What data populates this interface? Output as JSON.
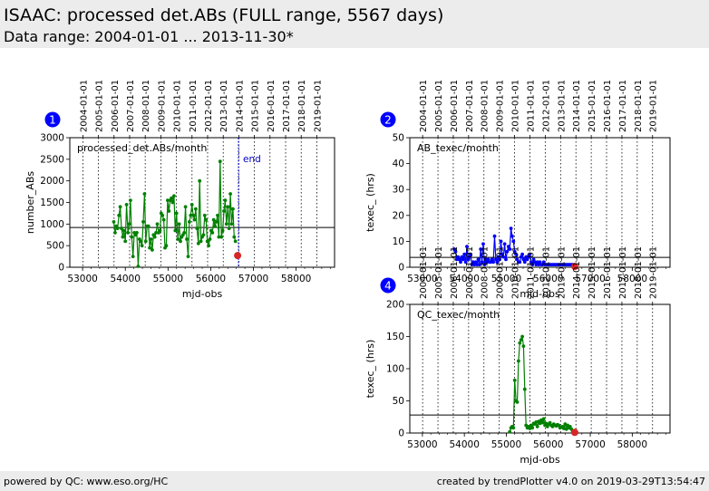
{
  "header": {
    "title": "ISAAC: processed det.ABs (FULL range, 5567 days)",
    "subtitle": "Data range: 2004-01-01 ... 2013-11-30*"
  },
  "footer": {
    "left": "powered by QC: www.eso.org/HC",
    "right": "created by trendPlotter v4.0 on 2019-03-29T13:54:47"
  },
  "colors": {
    "series1": "#008000",
    "series2": "#0000ff",
    "series4": "#008000",
    "badge": "#0000ff",
    "last_point": "#d62728"
  },
  "chart_data": [
    {
      "type": "line",
      "panel": "1",
      "annotation": "processed_det.ABs/month",
      "end_label": "end",
      "end_x": 56650,
      "xlabel": "mjd-obs",
      "ylabel": "number_ABs",
      "xlim": [
        52700,
        58900
      ],
      "ylim": [
        0,
        3000
      ],
      "xticks": [
        53000,
        54000,
        55000,
        56000,
        57000,
        58000
      ],
      "yticks": [
        0,
        500,
        1000,
        1500,
        2000,
        2500,
        3000
      ],
      "date_ticks": [
        {
          "mjd": 53006,
          "label": "2004-01-01"
        },
        {
          "mjd": 53371,
          "label": "2005-01-01"
        },
        {
          "mjd": 53736,
          "label": "2006-01-01"
        },
        {
          "mjd": 54101,
          "label": "2007-01-01"
        },
        {
          "mjd": 54466,
          "label": "2008-01-01"
        },
        {
          "mjd": 54832,
          "label": "2009-01-01"
        },
        {
          "mjd": 55197,
          "label": "2010-01-01"
        },
        {
          "mjd": 55562,
          "label": "2011-01-01"
        },
        {
          "mjd": 55927,
          "label": "2012-01-01"
        },
        {
          "mjd": 56293,
          "label": "2013-01-01"
        },
        {
          "mjd": 56658,
          "label": "2014-01-01"
        },
        {
          "mjd": 57023,
          "label": "2015-01-01"
        },
        {
          "mjd": 57388,
          "label": "2016-01-01"
        },
        {
          "mjd": 57754,
          "label": "2017-01-01"
        },
        {
          "mjd": 58119,
          "label": "2018-01-01"
        },
        {
          "mjd": 58484,
          "label": "2019-01-01"
        }
      ],
      "hline": 920,
      "last_point": {
        "x": 56630,
        "y": 270
      },
      "series": [
        {
          "x": [
            53730,
            53760,
            53790,
            53820,
            53850,
            53880,
            53910,
            53940,
            53970,
            54000,
            54030,
            54060,
            54090,
            54120,
            54150,
            54180,
            54210,
            54240,
            54270,
            54300,
            54330,
            54360,
            54390,
            54420,
            54450,
            54480,
            54510,
            54540,
            54570,
            54600,
            54630,
            54660,
            54690,
            54720,
            54750,
            54780,
            54810,
            54840,
            54870,
            54900,
            54930,
            54960,
            54990,
            55020,
            55050,
            55080,
            55110,
            55140,
            55170,
            55200,
            55230,
            55260,
            55290,
            55320,
            55350,
            55380,
            55410,
            55440,
            55470,
            55500,
            55530,
            55560,
            55590,
            55620,
            55650,
            55680,
            55710,
            55740,
            55770,
            55800,
            55830,
            55860,
            55890,
            55920,
            55950,
            55980,
            56010,
            56040,
            56070,
            56100,
            56130,
            56160,
            56190,
            56220,
            56250,
            56280,
            56310,
            56340,
            56370,
            56400,
            56430,
            56460,
            56490,
            56520,
            56550,
            56580
          ],
          "y": [
            1050,
            800,
            950,
            900,
            1200,
            1400,
            900,
            700,
            850,
            600,
            1450,
            800,
            1000,
            1550,
            700,
            250,
            800,
            750,
            800,
            20,
            650,
            600,
            500,
            1050,
            1700,
            600,
            950,
            950,
            450,
            650,
            400,
            750,
            700,
            800,
            1000,
            800,
            850,
            1250,
            1200,
            1100,
            450,
            500,
            1550,
            1300,
            1550,
            1600,
            1500,
            1650,
            850,
            1250,
            650,
            1000,
            600,
            700,
            750,
            800,
            1400,
            650,
            250,
            1050,
            1200,
            1450,
            1200,
            1100,
            1350,
            900,
            550,
            2000,
            600,
            700,
            750,
            1200,
            1100,
            600,
            500,
            650,
            850,
            800,
            1100,
            950,
            1050,
            1200,
            700,
            2450,
            700,
            850,
            1300,
            1550,
            1000,
            1400,
            900,
            1700,
            1000,
            1350,
            700,
            600
          ]
        }
      ]
    },
    {
      "type": "line",
      "panel": "2",
      "annotation": "AB_texec/month",
      "xlabel": "mjd-obs",
      "ylabel": "texec_ (hrs)",
      "xlim": [
        52700,
        58900
      ],
      "ylim": [
        0,
        50
      ],
      "xticks": [
        53000,
        54000,
        55000,
        56000,
        57000,
        58000
      ],
      "yticks": [
        0,
        10,
        20,
        30,
        40,
        50
      ],
      "date_ticks": [
        {
          "mjd": 53006,
          "label": "2004-01-01"
        },
        {
          "mjd": 53371,
          "label": "2005-01-01"
        },
        {
          "mjd": 53736,
          "label": "2006-01-01"
        },
        {
          "mjd": 54101,
          "label": "2007-01-01"
        },
        {
          "mjd": 54466,
          "label": "2008-01-01"
        },
        {
          "mjd": 54832,
          "label": "2009-01-01"
        },
        {
          "mjd": 55197,
          "label": "2010-01-01"
        },
        {
          "mjd": 55562,
          "label": "2011-01-01"
        },
        {
          "mjd": 55927,
          "label": "2012-01-01"
        },
        {
          "mjd": 56293,
          "label": "2013-01-01"
        },
        {
          "mjd": 56658,
          "label": "2014-01-01"
        },
        {
          "mjd": 57023,
          "label": "2015-01-01"
        },
        {
          "mjd": 57388,
          "label": "2016-01-01"
        },
        {
          "mjd": 57754,
          "label": "2017-01-01"
        },
        {
          "mjd": 58119,
          "label": "2018-01-01"
        },
        {
          "mjd": 58484,
          "label": "2019-01-01"
        }
      ],
      "hline": 3.8,
      "last_point": {
        "x": 56630,
        "y": 0.3
      },
      "series": [
        {
          "x": [
            53760,
            53790,
            53820,
            53850,
            53880,
            53910,
            53940,
            53970,
            54000,
            54030,
            54060,
            54090,
            54120,
            54150,
            54180,
            54210,
            54240,
            54270,
            54300,
            54330,
            54360,
            54390,
            54420,
            54450,
            54480,
            54510,
            54540,
            54570,
            54600,
            54630,
            54660,
            54690,
            54720,
            54750,
            54780,
            54810,
            54840,
            54870,
            54900,
            54930,
            54960,
            54990,
            55020,
            55050,
            55080,
            55110,
            55140,
            55170,
            55200,
            55230,
            55260,
            55290,
            55320,
            55350,
            55380,
            55410,
            55440,
            55470,
            55500,
            55530,
            55560,
            55590,
            55620,
            55650,
            55680,
            55710,
            55740,
            55770,
            55800,
            55830,
            55860,
            55890,
            55920,
            55950,
            55980,
            56010,
            56040,
            56070,
            56100,
            56130,
            56160,
            56190,
            56220,
            56250,
            56280,
            56310,
            56340,
            56370,
            56400,
            56430,
            56460,
            56490,
            56520,
            56550,
            56580
          ],
          "y": [
            7,
            6,
            3,
            4,
            3,
            2,
            4,
            3,
            5,
            2,
            8,
            3,
            4,
            5,
            1,
            2,
            1,
            2,
            1,
            3,
            1,
            7,
            2,
            9,
            1,
            3,
            2,
            3,
            2,
            2,
            3,
            2,
            12,
            3,
            2,
            4,
            3,
            10,
            5,
            4,
            9,
            3,
            6,
            8,
            7,
            15,
            12,
            10,
            6,
            5,
            3,
            2,
            2,
            4,
            5,
            3,
            2,
            4,
            3,
            4,
            5,
            2,
            1,
            3,
            2,
            1,
            2,
            1,
            2,
            1,
            1,
            2,
            1,
            1,
            1,
            1,
            1,
            1,
            1,
            1,
            1,
            1,
            1,
            1,
            1,
            1,
            1,
            1,
            1,
            1,
            1,
            1,
            1,
            1,
            1
          ]
        }
      ]
    },
    {
      "type": "line",
      "panel": "4",
      "annotation": "QC_texec/month",
      "xlabel": "mjd-obs",
      "ylabel": "texec_ (hrs)",
      "xlim": [
        52700,
        58900
      ],
      "ylim": [
        0,
        200
      ],
      "xticks": [
        53000,
        54000,
        55000,
        56000,
        57000,
        58000
      ],
      "yticks": [
        0,
        50,
        100,
        150,
        200
      ],
      "date_ticks": [
        {
          "mjd": 53006,
          "label": "2004-01-01"
        },
        {
          "mjd": 53371,
          "label": "2005-01-01"
        },
        {
          "mjd": 53736,
          "label": "2006-01-01"
        },
        {
          "mjd": 54101,
          "label": "2007-01-01"
        },
        {
          "mjd": 54466,
          "label": "2008-01-01"
        },
        {
          "mjd": 54832,
          "label": "2009-01-01"
        },
        {
          "mjd": 55197,
          "label": "2010-01-01"
        },
        {
          "mjd": 55562,
          "label": "2011-01-01"
        },
        {
          "mjd": 55927,
          "label": "2012-01-01"
        },
        {
          "mjd": 56293,
          "label": "2013-01-01"
        },
        {
          "mjd": 56658,
          "label": "2014-01-01"
        },
        {
          "mjd": 57023,
          "label": "2015-01-01"
        },
        {
          "mjd": 57388,
          "label": "2016-01-01"
        },
        {
          "mjd": 57754,
          "label": "2017-01-01"
        },
        {
          "mjd": 58119,
          "label": "2018-01-01"
        },
        {
          "mjd": 58484,
          "label": "2019-01-01"
        }
      ],
      "hline": 28,
      "last_point": {
        "x": 56630,
        "y": 1
      },
      "series": [
        {
          "x": [
            55080,
            55110,
            55140,
            55170,
            55200,
            55230,
            55260,
            55290,
            55320,
            55350,
            55380,
            55410,
            55440,
            55470,
            55500,
            55530,
            55560,
            55590,
            55620,
            55650,
            55680,
            55710,
            55740,
            55770,
            55800,
            55830,
            55860,
            55890,
            55920,
            55950,
            55980,
            56010,
            56040,
            56070,
            56100,
            56130,
            56160,
            56190,
            56220,
            56250,
            56280,
            56310,
            56340,
            56370,
            56400,
            56430,
            56460,
            56490,
            56520,
            56550,
            56580
          ],
          "y": [
            2,
            8,
            10,
            8,
            82,
            50,
            48,
            112,
            140,
            145,
            150,
            135,
            68,
            12,
            8,
            10,
            7,
            12,
            8,
            15,
            14,
            17,
            10,
            18,
            15,
            20,
            16,
            22,
            12,
            15,
            10,
            14,
            16,
            12,
            10,
            14,
            12,
            11,
            13,
            12,
            8,
            9,
            10,
            7,
            14,
            6,
            12,
            8,
            10,
            6,
            3
          ]
        }
      ]
    }
  ]
}
